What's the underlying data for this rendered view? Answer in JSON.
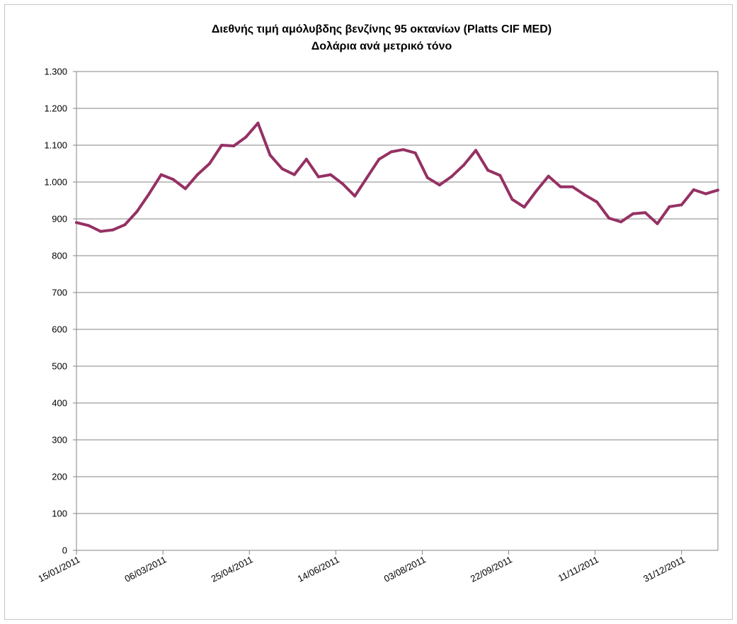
{
  "chart_data": {
    "type": "line",
    "title": "Διεθνής τιμή αμόλυβδης βενζίνης 95 οκτανίων (Platts CIF MED)",
    "subtitle": "Δολάρια ανά μετρικό τόνο",
    "xlabel": "",
    "ylabel": "",
    "ylim": [
      0,
      1300
    ],
    "yticks": [
      0,
      100,
      200,
      300,
      400,
      500,
      600,
      700,
      800,
      900,
      1000,
      1100,
      1200,
      1300
    ],
    "ytick_labels": [
      "0",
      "100",
      "200",
      "300",
      "400",
      "500",
      "600",
      "700",
      "800",
      "900",
      "1.000",
      "1.100",
      "1.200",
      "1.300"
    ],
    "xtick_labels": [
      "15/01/2011",
      "06/03/2011",
      "25/04/2011",
      "14/06/2011",
      "03/08/2011",
      "22/09/2011",
      "11/11/2011",
      "31/12/2011"
    ],
    "xlim": [
      "15/01/2011",
      "21/01/2012"
    ],
    "grid": true,
    "legend": "none",
    "series": [
      {
        "color": "#953163",
        "x": [
          "15/01/2011",
          "22/01/2011",
          "29/01/2011",
          "05/02/2011",
          "12/02/2011",
          "19/02/2011",
          "26/02/2011",
          "05/03/2011",
          "12/03/2011",
          "19/03/2011",
          "26/03/2011",
          "02/04/2011",
          "09/04/2011",
          "16/04/2011",
          "23/04/2011",
          "30/04/2011",
          "07/05/2011",
          "14/05/2011",
          "21/05/2011",
          "28/05/2011",
          "04/06/2011",
          "11/06/2011",
          "18/06/2011",
          "25/06/2011",
          "02/07/2011",
          "09/07/2011",
          "16/07/2011",
          "23/07/2011",
          "30/07/2011",
          "06/08/2011",
          "13/08/2011",
          "20/08/2011",
          "27/08/2011",
          "03/09/2011",
          "10/09/2011",
          "17/09/2011",
          "24/09/2011",
          "01/10/2011",
          "08/10/2011",
          "15/10/2011",
          "22/10/2011",
          "29/10/2011",
          "05/11/2011",
          "12/11/2011",
          "19/11/2011",
          "26/11/2011",
          "03/12/2011",
          "10/12/2011",
          "17/12/2011",
          "24/12/2011",
          "31/12/2011",
          "07/01/2012",
          "14/01/2012",
          "21/01/2012"
        ],
        "values": [
          890,
          882,
          866,
          870,
          884,
          920,
          968,
          1020,
          1007,
          982,
          1020,
          1050,
          1100,
          1098,
          1122,
          1160,
          1073,
          1036,
          1020,
          1062,
          1014,
          1020,
          995,
          962,
          1012,
          1062,
          1082,
          1088,
          1079,
          1012,
          992,
          1015,
          1046,
          1086,
          1032,
          1018,
          953,
          932,
          976,
          1016,
          987,
          987,
          965,
          946,
          902,
          892,
          914,
          917,
          887,
          933,
          938,
          979,
          968,
          978
        ]
      }
    ]
  }
}
